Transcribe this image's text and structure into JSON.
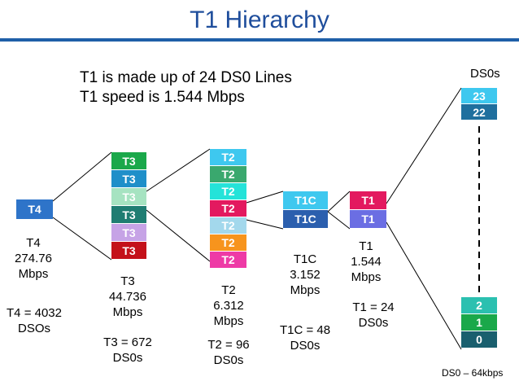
{
  "title": "T1 Hierarchy",
  "info": {
    "line1": "T1 is made up of 24 DS0 Lines",
    "line2": "T1 speed is 1.544 Mbps"
  },
  "colors": {
    "title": "#1f4e9c",
    "rule": "#1f5fa8",
    "t4": "#2e74c9"
  },
  "t4": {
    "box": "T4",
    "name": "T4",
    "speed1": "274.76",
    "speed2": "Mbps",
    "count1": "T4 = 4032",
    "count2": "DSOs"
  },
  "t3": {
    "boxes": [
      {
        "label": "T3",
        "color": "#1aa84a"
      },
      {
        "label": "T3",
        "color": "#1f8fc9"
      },
      {
        "label": "T3",
        "color": "#a6e3c1"
      },
      {
        "label": "T3",
        "color": "#1f7d72"
      },
      {
        "label": "T3",
        "color": "#c6a3e6"
      },
      {
        "label": "T3",
        "color": "#c4111a"
      }
    ],
    "name": "T3",
    "speed1": "44.736",
    "speed2": "Mbps",
    "count1": "T3 = 672",
    "count2": "DS0s"
  },
  "t2": {
    "boxes": [
      {
        "label": "T2",
        "color": "#3ec8ef"
      },
      {
        "label": "T2",
        "color": "#3aa86e"
      },
      {
        "label": "T2",
        "color": "#24e3d9"
      },
      {
        "label": "T2",
        "color": "#e3195f"
      },
      {
        "label": "T2",
        "color": "#a3d8ec"
      },
      {
        "label": "T2",
        "color": "#f7941d"
      },
      {
        "label": "T2",
        "color": "#ee3aa6"
      }
    ],
    "name": "T2",
    "speed1": "6.312",
    "speed2": "Mbps",
    "count1": "T2 = 96",
    "count2": "DS0s"
  },
  "t1c": {
    "boxes": [
      {
        "label": "T1C",
        "color": "#3ec8ef"
      },
      {
        "label": "T1C",
        "color": "#2b5fae"
      }
    ],
    "name": "T1C",
    "speed1": "3.152",
    "speed2": "Mbps",
    "count1": "T1C = 48",
    "count2": "DS0s"
  },
  "t1": {
    "boxes": [
      {
        "label": "T1",
        "color": "#e3195f"
      },
      {
        "label": "T1",
        "color": "#6b6ee3"
      }
    ],
    "name": "T1",
    "speed1": "1.544",
    "speed2": "Mbps",
    "count1": "T1 = 24",
    "count2": "DS0s"
  },
  "ds0": {
    "header": "DS0s",
    "top": [
      {
        "label": "23",
        "color": "#3ec8ef"
      },
      {
        "label": "22",
        "color": "#1f6f9e"
      }
    ],
    "bottom": [
      {
        "label": "2",
        "color": "#2bc0b0"
      },
      {
        "label": "1",
        "color": "#1aa84a"
      },
      {
        "label": "0",
        "color": "#1a5f6e"
      }
    ],
    "footnote": "DS0 – 64kbps"
  }
}
